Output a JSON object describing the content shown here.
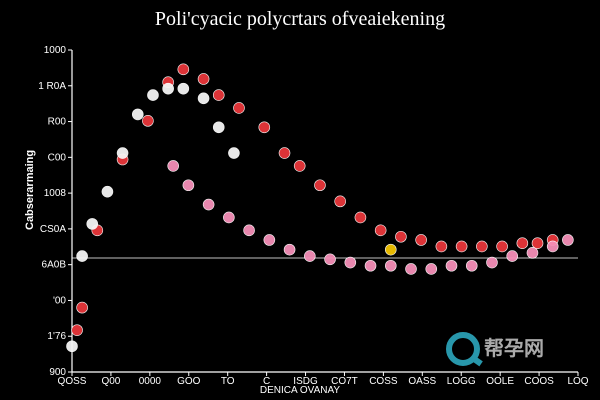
{
  "title": "Poli'cyacic polycrtars ofveaiekening",
  "watermark": {
    "text": "帮孕网"
  },
  "colors": {
    "background": "#000000",
    "red": "#e8363a",
    "white": "#f5f5f5",
    "pink": "#f58fb8",
    "yellow": "#f2c200",
    "axis": "#ffffff"
  },
  "chart_data": {
    "type": "scatter",
    "title": "Poli'cyacic polycrtars ofveaiekening",
    "xlabel": "DENICA OVANAY",
    "ylabel": "Cabserarmaing",
    "yticks": [
      "1000",
      "1 R0A",
      "R00",
      "C00",
      "1008",
      "CS0A",
      "6A0B",
      "'00",
      "1'76",
      "900"
    ],
    "xticks": [
      "QOSS",
      "Q00",
      "0000",
      "GOO",
      "TO",
      "C",
      "ISDG",
      "CO7T",
      "COSS",
      "OASS",
      "LOGG",
      "OOLE",
      "COOS",
      "LOQ"
    ],
    "xlim": [
      0,
      100
    ],
    "ylim": [
      0,
      100
    ],
    "grid": false,
    "legend": "none",
    "series": [
      {
        "color": "#e8363a",
        "marker": "circle",
        "x": [
          1,
          2,
          5,
          10,
          15,
          19,
          22,
          26,
          29,
          33,
          38,
          42,
          45,
          49,
          53,
          57,
          61,
          65,
          69,
          73,
          77,
          81,
          85,
          89,
          92,
          95
        ],
        "y": [
          13,
          20,
          44,
          66,
          78,
          90,
          94,
          91,
          86,
          82,
          76,
          68,
          64,
          58,
          53,
          48,
          44,
          42,
          41,
          39,
          39,
          39,
          39,
          40,
          40,
          41
        ]
      },
      {
        "color": "#f5f5f5",
        "marker": "circle",
        "x": [
          0,
          2,
          4,
          7,
          10,
          13,
          16,
          19,
          22,
          26,
          29,
          32
        ],
        "y": [
          8,
          36,
          46,
          56,
          68,
          80,
          86,
          88,
          88,
          85,
          76,
          68
        ]
      },
      {
        "color": "#f58fb8",
        "marker": "circle",
        "x": [
          20,
          23,
          27,
          31,
          35,
          39,
          43,
          47,
          51,
          55,
          59,
          63,
          67,
          71,
          75,
          79,
          83,
          87,
          91,
          95,
          98
        ],
        "y": [
          64,
          58,
          52,
          48,
          44,
          41,
          38,
          36,
          35,
          34,
          33,
          33,
          32,
          32,
          33,
          33,
          34,
          36,
          37,
          39,
          41
        ]
      },
      {
        "color": "#f2c200",
        "marker": "circle",
        "x": [
          63
        ],
        "y": [
          38
        ]
      }
    ]
  }
}
